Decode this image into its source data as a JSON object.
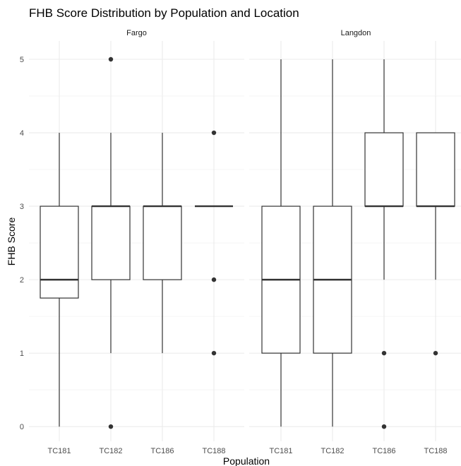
{
  "title": "FHB Score Distribution by Population and Location",
  "chart_data": {
    "type": "boxplot",
    "title": "FHB Score Distribution by Population and Location",
    "xlabel": "Population",
    "ylabel": "FHB Score",
    "ylim": [
      -0.2,
      5.25
    ],
    "yticks": [
      "0",
      "1",
      "2",
      "3",
      "4",
      "5"
    ],
    "grid": true,
    "categories": [
      "TC181",
      "TC182",
      "TC186",
      "TC188"
    ],
    "panels": [
      {
        "name": "Fargo",
        "boxes": [
          {
            "category": "TC181",
            "lower_whisker": 0,
            "q1": 1.75,
            "median": 2,
            "q3": 3,
            "upper_whisker": 4,
            "outliers": []
          },
          {
            "category": "TC182",
            "lower_whisker": 1,
            "q1": 2,
            "median": 3,
            "q3": 3,
            "upper_whisker": 4,
            "outliers": [
              5,
              0
            ]
          },
          {
            "category": "TC186",
            "lower_whisker": 1,
            "q1": 2,
            "median": 3,
            "q3": 3,
            "upper_whisker": 4,
            "outliers": []
          },
          {
            "category": "TC188",
            "lower_whisker": 3,
            "q1": 3,
            "median": 3,
            "q3": 3,
            "upper_whisker": 3,
            "outliers": [
              4,
              2,
              1
            ]
          }
        ]
      },
      {
        "name": "Langdon",
        "boxes": [
          {
            "category": "TC181",
            "lower_whisker": 0,
            "q1": 1,
            "median": 2,
            "q3": 3,
            "upper_whisker": 5,
            "outliers": []
          },
          {
            "category": "TC182",
            "lower_whisker": 0,
            "q1": 1,
            "median": 2,
            "q3": 3,
            "upper_whisker": 5,
            "outliers": []
          },
          {
            "category": "TC186",
            "lower_whisker": 2,
            "q1": 3,
            "median": 3,
            "q3": 4,
            "upper_whisker": 5,
            "outliers": [
              1,
              0
            ]
          },
          {
            "category": "TC188",
            "lower_whisker": 2,
            "q1": 3,
            "median": 3,
            "q3": 4,
            "upper_whisker": 4,
            "outliers": [
              1
            ]
          }
        ]
      }
    ]
  },
  "colors": {
    "box_stroke": "#333333",
    "grid_major": "#ebebeb",
    "grid_minor": "#f5f5f5",
    "tick_text": "#4d4d4d"
  }
}
